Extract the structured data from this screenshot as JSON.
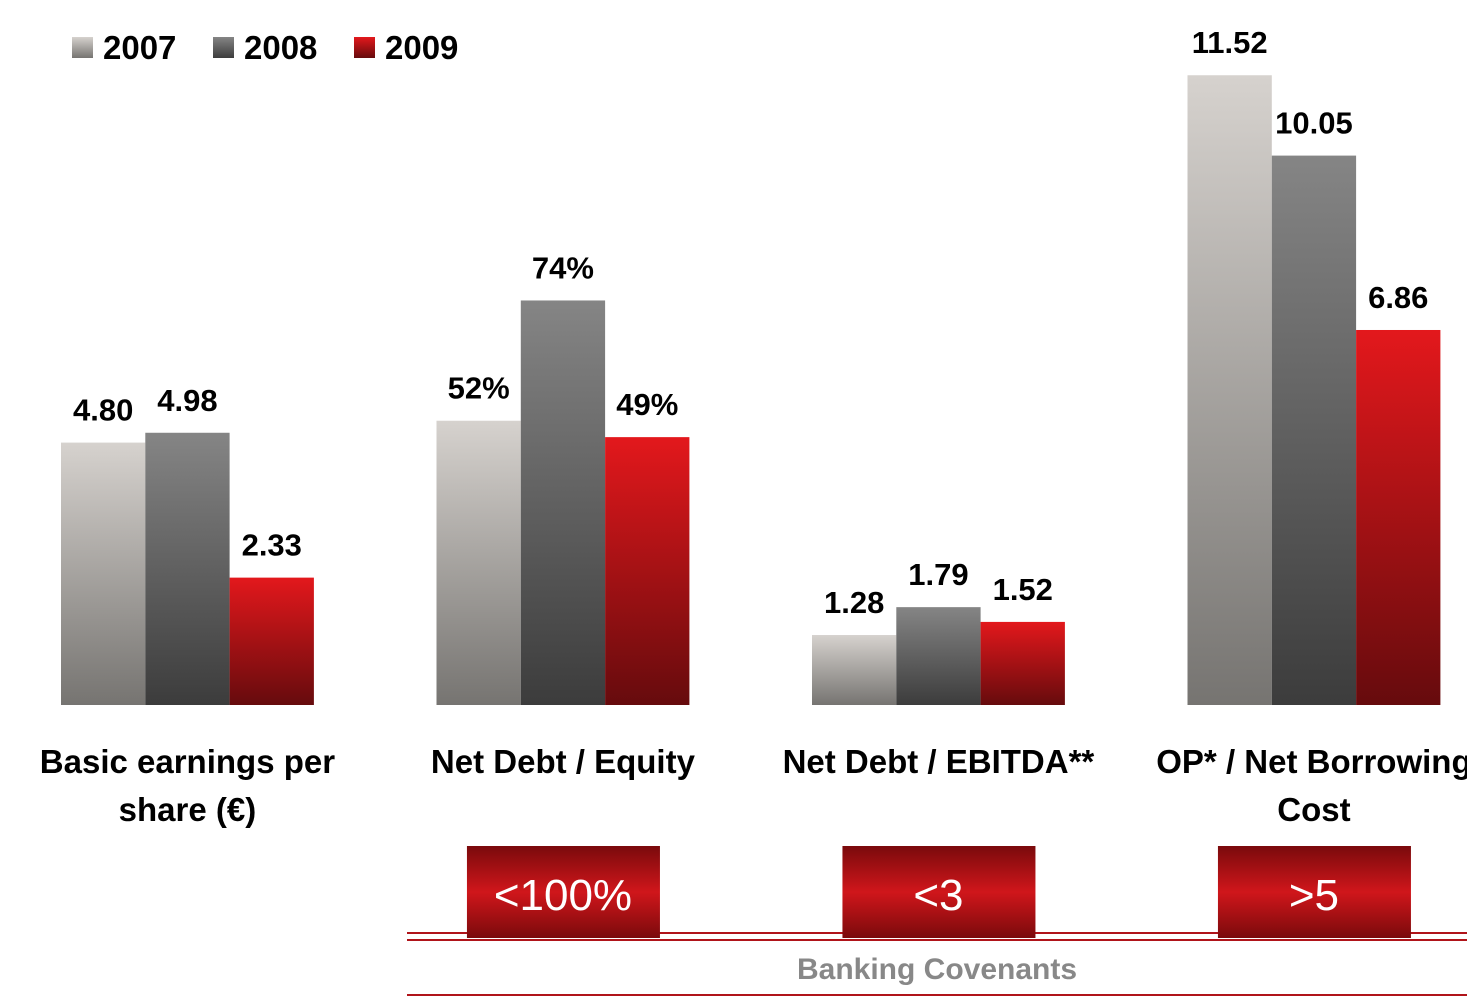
{
  "chart_data": {
    "type": "bar",
    "categories": [
      "Basic earnings per share (€)",
      "Net Debt / Equity",
      "Net Debt / EBITDA**",
      "OP* / Net Borrowing Cost"
    ],
    "ylims": [
      [
        0,
        12
      ],
      [
        0,
        120
      ],
      [
        0,
        12
      ],
      [
        0,
        12
      ]
    ],
    "series": [
      {
        "name": "2007",
        "color": "#d6d2ce",
        "values": [
          4.8,
          52,
          1.28,
          11.52
        ],
        "value_labels": [
          "4.80",
          "52%",
          "1.28",
          "11.52"
        ]
      },
      {
        "name": "2008",
        "color": "#858585",
        "values": [
          4.98,
          74,
          1.79,
          10.05
        ],
        "value_labels": [
          "4.98",
          "74%",
          "1.79",
          "10.05"
        ]
      },
      {
        "name": "2009",
        "color": "#e3181c",
        "values": [
          2.33,
          49,
          1.52,
          6.86
        ],
        "value_labels": [
          "2.33",
          "49%",
          "1.52",
          "6.86"
        ]
      }
    ],
    "legend": "top-left"
  },
  "covenants": {
    "title": "Banking Covenants",
    "limits": [
      "<100%",
      "<3",
      ">5"
    ]
  }
}
